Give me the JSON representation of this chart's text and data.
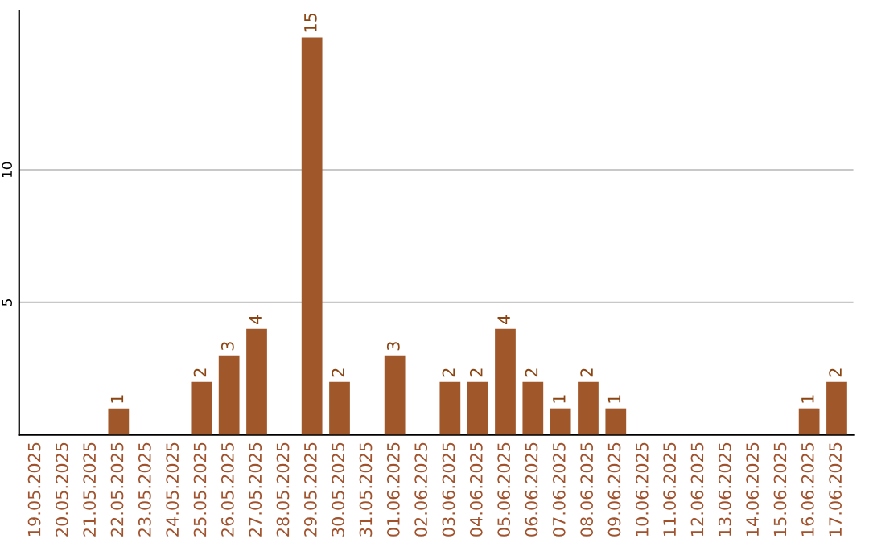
{
  "chart_data": {
    "type": "bar",
    "categories": [
      "19.05.2025",
      "20.05.2025",
      "21.05.2025",
      "22.05.2025",
      "23.05.2025",
      "24.05.2025",
      "25.05.2025",
      "26.05.2025",
      "27.05.2025",
      "28.05.2025",
      "29.05.2025",
      "30.05.2025",
      "31.05.2025",
      "01.06.2025",
      "02.06.2025",
      "03.06.2025",
      "04.06.2025",
      "05.06.2025",
      "06.06.2025",
      "07.06.2025",
      "08.06.2025",
      "09.06.2025",
      "10.06.2025",
      "11.06.2025",
      "12.06.2025",
      "13.06.2025",
      "14.06.2025",
      "15.06.2025",
      "16.06.2025",
      "17.06.2025"
    ],
    "values": [
      0,
      0,
      0,
      1,
      0,
      0,
      2,
      3,
      4,
      0,
      15,
      2,
      0,
      3,
      0,
      2,
      2,
      4,
      2,
      1,
      2,
      1,
      0,
      0,
      0,
      0,
      0,
      0,
      1,
      2
    ],
    "value_labels": [
      null,
      null,
      null,
      "1",
      null,
      null,
      "2",
      "3",
      "4",
      null,
      "15",
      "2",
      null,
      "3",
      null,
      "2",
      "2",
      "4",
      "2",
      "1",
      "2",
      "1",
      null,
      null,
      null,
      null,
      null,
      null,
      "1",
      "2"
    ],
    "color": "#a0582a",
    "ylim": [
      0,
      16
    ],
    "yticks": [
      5,
      10
    ],
    "grid": "y"
  }
}
